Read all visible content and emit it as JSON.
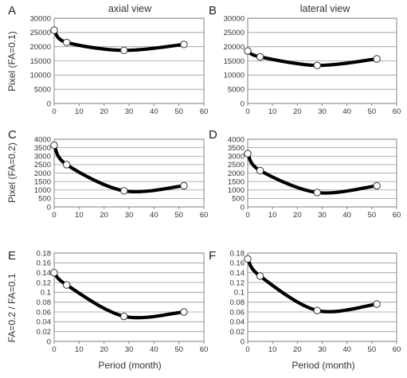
{
  "column_titles": [
    "axial view",
    "lateral view"
  ],
  "row_ylabels": [
    "Pixel (FA=0.1)",
    "Pixel (FA=0.2)",
    "FA=0.2 / FA=0.1"
  ],
  "xlabel": "Period (month)",
  "chart_data": [
    {
      "panel": "A",
      "type": "line",
      "title": "axial view",
      "xlabel": "",
      "ylabel": "Pixel (FA=0.1)",
      "x": [
        0,
        5,
        28,
        52
      ],
      "y": [
        25800,
        21500,
        18700,
        20800
      ],
      "xlim": [
        0,
        60
      ],
      "ylim": [
        0,
        30000
      ],
      "xticks": [
        0,
        10,
        20,
        30,
        40,
        50,
        60
      ],
      "yticks": [
        0,
        5000,
        10000,
        15000,
        20000,
        25000,
        30000
      ],
      "grid": true,
      "smooth": true
    },
    {
      "panel": "B",
      "type": "line",
      "title": "lateral view",
      "xlabel": "",
      "ylabel": "",
      "x": [
        0,
        5,
        28,
        52
      ],
      "y": [
        18500,
        16400,
        13400,
        15700
      ],
      "xlim": [
        0,
        60
      ],
      "ylim": [
        0,
        30000
      ],
      "xticks": [
        0,
        10,
        20,
        30,
        40,
        50,
        60
      ],
      "yticks": [
        0,
        5000,
        10000,
        15000,
        20000,
        25000,
        30000
      ],
      "grid": true,
      "smooth": true
    },
    {
      "panel": "C",
      "type": "line",
      "title": "",
      "xlabel": "",
      "ylabel": "Pixel (FA=0.2)",
      "x": [
        0,
        5,
        28,
        52
      ],
      "y": [
        3650,
        2500,
        950,
        1250
      ],
      "xlim": [
        0,
        60
      ],
      "ylim": [
        0,
        4000
      ],
      "xticks": [
        0,
        10,
        20,
        30,
        40,
        50,
        60
      ],
      "yticks": [
        0,
        500,
        1000,
        1500,
        2000,
        2500,
        3000,
        3500,
        4000
      ],
      "grid": true,
      "smooth": true
    },
    {
      "panel": "D",
      "type": "line",
      "title": "",
      "xlabel": "",
      "ylabel": "",
      "x": [
        0,
        5,
        28,
        52
      ],
      "y": [
        3150,
        2150,
        850,
        1250
      ],
      "xlim": [
        0,
        60
      ],
      "ylim": [
        0,
        4000
      ],
      "xticks": [
        0,
        10,
        20,
        30,
        40,
        50,
        60
      ],
      "yticks": [
        0,
        500,
        1000,
        1500,
        2000,
        2500,
        3000,
        3500,
        4000
      ],
      "grid": true,
      "smooth": true
    },
    {
      "panel": "E",
      "type": "line",
      "title": "",
      "xlabel": "Period (month)",
      "ylabel": "FA=0.2 / FA=0.1",
      "x": [
        0,
        5,
        28,
        52
      ],
      "y": [
        0.14,
        0.115,
        0.051,
        0.06
      ],
      "xlim": [
        0,
        60
      ],
      "ylim": [
        0,
        0.18
      ],
      "xticks": [
        0,
        10,
        20,
        30,
        40,
        50,
        60
      ],
      "yticks": [
        0,
        0.02,
        0.04,
        0.06,
        0.08,
        0.1,
        0.12,
        0.14,
        0.16,
        0.18
      ],
      "grid": true,
      "smooth": true
    },
    {
      "panel": "F",
      "type": "line",
      "title": "",
      "xlabel": "Period (month)",
      "ylabel": "",
      "x": [
        0,
        5,
        28,
        52
      ],
      "y": [
        0.168,
        0.133,
        0.063,
        0.076
      ],
      "xlim": [
        0,
        60
      ],
      "ylim": [
        0,
        0.18
      ],
      "xticks": [
        0,
        10,
        20,
        30,
        40,
        50,
        60
      ],
      "yticks": [
        0,
        0.02,
        0.04,
        0.06,
        0.08,
        0.1,
        0.12,
        0.14,
        0.16,
        0.18
      ],
      "grid": true,
      "smooth": true
    }
  ]
}
